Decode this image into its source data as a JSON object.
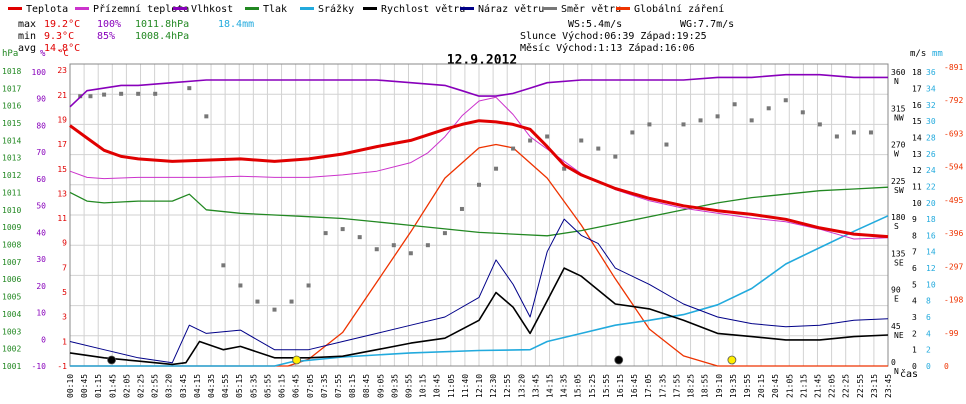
{
  "legend": [
    {
      "label": "Teplota",
      "color": "#e00000"
    },
    {
      "label": "Přízemní teplota",
      "color": "#cc33cc"
    },
    {
      "label": "Vlhkost",
      "color": "#8800bb"
    },
    {
      "label": "Tlak",
      "color": "#228822"
    },
    {
      "label": "Srážky",
      "color": "#22aadd"
    },
    {
      "label": "Rychlost větru",
      "color": "#000000"
    },
    {
      "label": "Náraz větru",
      "color": "#000088"
    },
    {
      "label": "Směr větru",
      "color": "#777777"
    },
    {
      "label": "Globální záření",
      "color": "#ee3300"
    }
  ],
  "stats": {
    "max_label": "max",
    "max_temp": "19.2°C",
    "max_hum": "100%",
    "max_press": "1011.8hPa",
    "max_rain": "18.4mm",
    "min_label": "min",
    "min_temp": "9.3°C",
    "min_hum": "85%",
    "min_press": "1008.4hPa",
    "avg_label": "avg",
    "avg_temp": "14.8°C"
  },
  "wind_info": {
    "ws": "WS:5.4m/s",
    "wg": "WG:7.7m/s",
    "sun": "Slunce Východ:06:39  Západ:19:25",
    "moon": "Měsíc  Východ:1:13   Západ:16:06"
  },
  "chart_data": {
    "type": "line",
    "title": "12.9.2012",
    "xlabel": "čas",
    "x_ticks": [
      "00:10",
      "00:45",
      "01:15",
      "01:45",
      "02:05",
      "02:25",
      "02:55",
      "03:20",
      "03:45",
      "04:15",
      "04:35",
      "04:55",
      "05:15",
      "05:35",
      "05:55",
      "06:15",
      "06:45",
      "07:05",
      "07:35",
      "07:55",
      "08:15",
      "08:45",
      "09:05",
      "09:35",
      "09:55",
      "10:15",
      "10:45",
      "11:05",
      "11:40",
      "12:10",
      "12:30",
      "12:55",
      "13:20",
      "13:45",
      "14:15",
      "14:35",
      "15:05",
      "15:25",
      "15:55",
      "16:15",
      "16:45",
      "17:05",
      "17:35",
      "17:55",
      "18:25",
      "18:55",
      "19:10",
      "19:35",
      "19:55",
      "20:15",
      "20:45",
      "21:05",
      "21:15",
      "21:45",
      "22:05",
      "22:25",
      "22:55",
      "23:15",
      "23:45"
    ],
    "axes": {
      "hpa": {
        "label": "hPa",
        "color": "#228822",
        "ticks": [
          "1001",
          "1002",
          "1003",
          "1004",
          "1005",
          "1006",
          "1007",
          "1008",
          "1009",
          "1010",
          "1011",
          "1012",
          "1013",
          "1014",
          "1015",
          "1016",
          "1017",
          "1018"
        ]
      },
      "pct": {
        "label": "%",
        "color": "#8800bb",
        "ticks": [
          "-10",
          "0",
          "10",
          "20",
          "30",
          "40",
          "50",
          "60",
          "70",
          "80",
          "90",
          "100"
        ]
      },
      "temp": {
        "label": "°C",
        "color": "#e00000",
        "ticks": [
          "-1",
          "1",
          "3",
          "5",
          "7",
          "9",
          "11",
          "13",
          "15",
          "17",
          "19",
          "21",
          "23"
        ]
      },
      "wind": {
        "label": "m/s",
        "color": "#000000",
        "ticks": [
          "0",
          "1",
          "2",
          "3",
          "4",
          "5",
          "6",
          "7",
          "8",
          "9",
          "10",
          "11",
          "12",
          "13",
          "14",
          "15",
          "16",
          "17",
          "18"
        ]
      },
      "dir": {
        "label": "",
        "color": "#000000",
        "values": [
          "0",
          "45",
          "90",
          "135",
          "180",
          "225",
          "270",
          "315",
          "360"
        ],
        "names": [
          "N",
          "NE",
          "E",
          "SE",
          "S",
          "SW",
          "W",
          "NW",
          "N"
        ]
      },
      "mm": {
        "label": "mm",
        "color": "#22aadd",
        "ticks": [
          "0",
          "2",
          "4",
          "6",
          "8",
          "10",
          "12",
          "14",
          "16",
          "18",
          "20",
          "22",
          "24",
          "26",
          "28",
          "30",
          "32",
          "34",
          "36"
        ]
      },
      "wm2": {
        "label": "",
        "color": "#ee3300",
        "ticks": [
          "0",
          "-99",
          "-198",
          "-297",
          "-396",
          "-495",
          "-594",
          "-693",
          "-792",
          "-891"
        ]
      }
    },
    "series": [
      {
        "name": "Teplota",
        "color": "#e00000",
        "x": [
          0,
          0.5,
          1,
          1.5,
          2,
          3,
          4,
          5,
          6,
          7,
          8,
          9,
          10,
          11,
          11.5,
          12,
          12.5,
          13,
          13.5,
          14,
          14.5,
          15,
          16,
          17,
          18,
          19,
          20,
          21,
          22,
          23,
          24
        ],
        "y": [
          18.5,
          17.5,
          16.5,
          16,
          15.8,
          15.6,
          15.7,
          15.8,
          15.6,
          15.8,
          16.2,
          16.8,
          17.3,
          18.2,
          18.6,
          18.9,
          18.8,
          18.6,
          18.2,
          16.8,
          15.3,
          14.5,
          13.4,
          12.6,
          12.0,
          11.6,
          11.3,
          10.9,
          10.2,
          9.7,
          9.5
        ]
      },
      {
        "name": "Přízemní teplota",
        "color": "#cc33cc",
        "x": [
          0,
          0.5,
          1,
          2,
          3,
          4,
          5,
          6,
          7,
          8,
          9,
          10,
          10.5,
          11,
          11.5,
          12,
          12.5,
          13,
          13.5,
          14,
          15,
          16,
          17,
          18,
          19,
          20,
          21,
          22,
          23,
          24
        ],
        "y": [
          14.8,
          14.3,
          14.2,
          14.3,
          14.3,
          14.3,
          14.4,
          14.3,
          14.3,
          14.5,
          14.8,
          15.5,
          16.3,
          17.6,
          19.3,
          20.5,
          20.8,
          19.4,
          17.6,
          16.6,
          14.6,
          13.3,
          12.4,
          11.8,
          11.4,
          11.0,
          10.7,
          10.1,
          9.3,
          9.4
        ]
      },
      {
        "name": "Vlhkost",
        "color": "#8800bb",
        "x": [
          0,
          0.5,
          1,
          1.5,
          2,
          3,
          4,
          5,
          6,
          7,
          8,
          9,
          10,
          11,
          11.5,
          12,
          12.5,
          13,
          13.5,
          14,
          15,
          16,
          17,
          18,
          19,
          20,
          21,
          22,
          23,
          24
        ],
        "y": [
          87,
          93,
          94,
          95,
          95,
          96,
          97,
          97,
          97,
          97,
          97,
          97,
          96,
          95,
          93,
          91,
          91,
          92,
          94,
          96,
          97,
          97,
          97,
          97,
          98,
          98,
          99,
          99,
          98,
          98
        ]
      },
      {
        "name": "Tlak",
        "color": "#228822",
        "x": [
          0,
          0.5,
          1,
          2,
          3,
          3.5,
          4,
          5,
          6,
          7,
          8,
          9,
          10,
          11,
          12,
          13,
          14,
          15,
          16,
          17,
          18,
          19,
          20,
          21,
          22,
          23,
          24
        ],
        "y": [
          1011.0,
          1010.5,
          1010.4,
          1010.5,
          1010.5,
          1010.9,
          1010.0,
          1009.8,
          1009.7,
          1009.6,
          1009.5,
          1009.3,
          1009.1,
          1008.9,
          1008.7,
          1008.6,
          1008.5,
          1008.8,
          1009.2,
          1009.6,
          1010.0,
          1010.4,
          1010.7,
          1010.9,
          1011.1,
          1011.2,
          1011.3
        ]
      },
      {
        "name": "Srážky",
        "color": "#22aadd",
        "x": [
          0,
          6,
          6.5,
          8,
          10,
          12,
          13.5,
          14,
          15,
          16,
          17,
          18,
          19,
          20,
          21,
          22,
          23,
          24
        ],
        "y": [
          0,
          0,
          0.5,
          1.1,
          1.6,
          1.9,
          2.0,
          3.0,
          4.0,
          5.0,
          5.6,
          6.3,
          7.5,
          9.5,
          12.5,
          14.5,
          16.5,
          18.4
        ]
      },
      {
        "name": "Rychlost větru",
        "color": "#000000",
        "x": [
          0,
          1,
          2,
          3,
          3.4,
          3.8,
          4.5,
          5,
          6,
          7,
          8,
          9,
          10,
          11,
          12,
          12.5,
          13,
          13.5,
          14,
          14.5,
          15,
          16,
          17,
          18,
          19,
          20,
          21,
          22,
          23,
          24
        ],
        "y": [
          0.8,
          0.5,
          0.3,
          0.1,
          0.2,
          1.5,
          1.0,
          1.2,
          0.5,
          0.5,
          0.6,
          1.0,
          1.4,
          1.7,
          2.8,
          4.5,
          3.6,
          2.0,
          4.0,
          6.0,
          5.5,
          3.8,
          3.5,
          2.8,
          2.0,
          1.8,
          1.6,
          1.6,
          1.8,
          1.9
        ]
      },
      {
        "name": "Náraz větru",
        "color": "#000088",
        "x": [
          0,
          1,
          2,
          3,
          3.5,
          4,
          5,
          6,
          7,
          8,
          9,
          10,
          11,
          12,
          12.5,
          13,
          13.5,
          14,
          14.5,
          15,
          15.5,
          16,
          17,
          18,
          19,
          20,
          21,
          22,
          23,
          24
        ],
        "y": [
          1.5,
          1.0,
          0.5,
          0.2,
          2.5,
          2.0,
          2.2,
          1.0,
          1.0,
          1.5,
          2.0,
          2.5,
          3.0,
          4.2,
          6.5,
          5.0,
          3.0,
          7.0,
          9.0,
          8.0,
          7.5,
          6.0,
          5.0,
          3.8,
          3.0,
          2.6,
          2.4,
          2.5,
          2.8,
          2.9
        ]
      },
      {
        "name": "Směr větru",
        "color": "#777777",
        "x": [
          0.3,
          0.6,
          1,
          1.5,
          2,
          2.5,
          3.5,
          4,
          4.5,
          5,
          5.5,
          6,
          6.5,
          7,
          7.5,
          8,
          8.5,
          9,
          9.5,
          10,
          10.5,
          11,
          11.5,
          12,
          12.5,
          13,
          13.5,
          14,
          14.5,
          15,
          15.5,
          16,
          16.5,
          17,
          17.5,
          18,
          18.5,
          19,
          19.5,
          20,
          20.5,
          21,
          21.5,
          22,
          22.5,
          23,
          23.5
        ],
        "y": [
          335,
          335,
          337,
          338,
          338,
          338,
          345,
          310,
          125,
          100,
          80,
          70,
          80,
          100,
          165,
          170,
          160,
          145,
          150,
          140,
          150,
          165,
          195,
          225,
          245,
          270,
          280,
          285,
          245,
          280,
          270,
          260,
          290,
          300,
          275,
          300,
          305,
          310,
          325,
          305,
          320,
          330,
          315,
          300,
          285,
          290,
          290
        ]
      },
      {
        "name": "Globální záření",
        "color": "#ee3300",
        "x": [
          0,
          6.4,
          7,
          8,
          9,
          10,
          11,
          12,
          12.5,
          13,
          14,
          15,
          16,
          17,
          18,
          19,
          19.4,
          24
        ],
        "y": [
          0,
          0,
          20,
          100,
          250,
          400,
          560,
          650,
          660,
          650,
          560,
          420,
          260,
          110,
          30,
          0,
          0,
          0
        ]
      }
    ],
    "grid": true
  }
}
